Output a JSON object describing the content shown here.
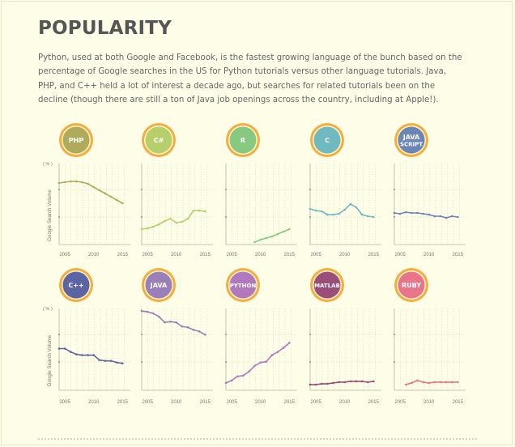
{
  "page": {
    "title": "POPULARITY",
    "intro": "Python, used at both Google and Facebook, is the fastest growing language of the bunch based on the percentage of Google searches in the US for Python tutorials versus other language tutorials. Java, PHP, and C++ held a lot of interest a decade ago, but searches for related tutorials been on the decline (though there are still a ton of Java job openings across the country, including at Apple!)."
  },
  "chart_data": [
    {
      "type": "line",
      "language": "PHP",
      "color": "#b0ab5b",
      "ylabel": "Google Search Volume",
      "yunit": "( % )",
      "xticks": [
        "2005",
        "2010",
        "2015"
      ],
      "x": [
        2004,
        2005,
        2006,
        2007,
        2008,
        2009,
        2010,
        2011,
        2012,
        2013,
        2014,
        2015
      ],
      "values": [
        76,
        77,
        78,
        78,
        77,
        75,
        71,
        67,
        63,
        59,
        55,
        51
      ]
    },
    {
      "type": "line",
      "language": "C#",
      "color": "#b7cf6b",
      "xticks": [
        "2005",
        "2010",
        "2015"
      ],
      "x": [
        2004,
        2005,
        2006,
        2007,
        2008,
        2009,
        2010,
        2011,
        2012,
        2013,
        2014,
        2015
      ],
      "values": [
        19,
        20,
        22,
        25,
        29,
        32,
        27,
        28,
        32,
        42,
        42,
        41
      ]
    },
    {
      "type": "line",
      "language": "R",
      "color": "#86c981",
      "xticks": [
        "2005",
        "2010",
        "2015"
      ],
      "x": [
        2009,
        2010,
        2011,
        2012,
        2013,
        2014,
        2015
      ],
      "values": [
        3,
        6,
        8,
        10,
        13,
        16,
        19
      ]
    },
    {
      "type": "line",
      "language": "C",
      "color": "#6fb9c1",
      "xticks": [
        "2005",
        "2010",
        "2015"
      ],
      "x": [
        2004,
        2005,
        2006,
        2007,
        2008,
        2009,
        2010,
        2011,
        2012,
        2013,
        2014,
        2015
      ],
      "values": [
        44,
        42,
        41,
        37,
        37,
        38,
        43,
        50,
        46,
        37,
        35,
        34
      ]
    },
    {
      "type": "line",
      "language": "JAVA SCRIPT",
      "color": "#6b86b5",
      "xticks": [
        "2005",
        "2010",
        "2015"
      ],
      "x": [
        2004,
        2005,
        2006,
        2007,
        2008,
        2009,
        2010,
        2011,
        2012,
        2013,
        2014,
        2015
      ],
      "values": [
        39,
        38,
        40,
        39,
        39,
        38,
        37,
        35,
        35,
        33,
        35,
        34
      ]
    },
    {
      "type": "line",
      "language": "C++",
      "color": "#5c64a3",
      "ylabel": "Google Search Volume",
      "yunit": "( % )",
      "xticks": [
        "2005",
        "2010",
        "2015"
      ],
      "x": [
        2004,
        2005,
        2006,
        2007,
        2008,
        2009,
        2010,
        2011,
        2012,
        2013,
        2014,
        2015
      ],
      "values": [
        51,
        51,
        47,
        44,
        43,
        43,
        43,
        37,
        36,
        36,
        34,
        33
      ]
    },
    {
      "type": "line",
      "language": "JAVA",
      "color": "#9b7fb8",
      "xticks": [
        "2005",
        "2010",
        "2015"
      ],
      "x": [
        2004,
        2005,
        2006,
        2007,
        2008,
        2009,
        2010,
        2011,
        2012,
        2013,
        2014,
        2015
      ],
      "values": [
        97,
        96,
        94,
        90,
        83,
        84,
        83,
        78,
        77,
        74,
        72,
        68
      ]
    },
    {
      "type": "line",
      "language": "PYTHON",
      "color": "#b278bc",
      "xticks": [
        "2005",
        "2010",
        "2015"
      ],
      "x": [
        2004,
        2005,
        2006,
        2007,
        2008,
        2009,
        2010,
        2011,
        2012,
        2013,
        2014,
        2015
      ],
      "values": [
        9,
        12,
        17,
        18,
        23,
        30,
        34,
        35,
        43,
        47,
        52,
        58
      ]
    },
    {
      "type": "line",
      "language": "MATLAB",
      "color": "#9a4f79",
      "xticks": [
        "2005",
        "2010",
        "2015"
      ],
      "x": [
        2004,
        2005,
        2006,
        2007,
        2008,
        2009,
        2010,
        2011,
        2012,
        2013,
        2014,
        2015
      ],
      "values": [
        7,
        7,
        8,
        8,
        9,
        10,
        10,
        11,
        11,
        11,
        10,
        11
      ]
    },
    {
      "type": "line",
      "language": "RUBY",
      "color": "#e9758d",
      "xticks": [
        "2005",
        "2010",
        "2015"
      ],
      "x": [
        2006,
        2007,
        2008,
        2009,
        2010,
        2011,
        2012,
        2013,
        2014,
        2015
      ],
      "values": [
        7,
        9,
        12,
        10,
        9,
        10,
        10,
        10,
        10,
        10
      ]
    }
  ]
}
